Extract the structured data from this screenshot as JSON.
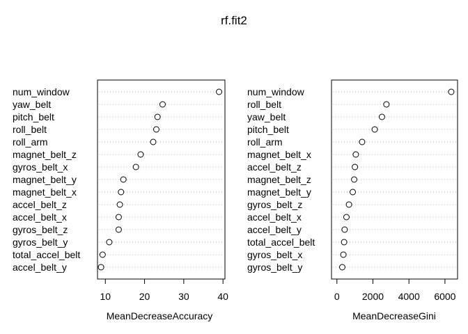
{
  "chart_data": {
    "title": "rf.fit2",
    "panels": [
      {
        "type": "dotchart",
        "xlabel": "MeanDecreaseAccuracy",
        "xlim": [
          8,
          40.5
        ],
        "xticks": [
          10,
          20,
          30,
          40
        ],
        "labels": [
          "num_window",
          "yaw_belt",
          "pitch_belt",
          "roll_belt",
          "roll_arm",
          "magnet_belt_z",
          "gyros_belt_x",
          "magnet_belt_y",
          "magnet_belt_x",
          "accel_belt_z",
          "accel_belt_x",
          "gyros_belt_z",
          "gyros_belt_y",
          "total_accel_belt",
          "accel_belt_y"
        ],
        "values": [
          39.0,
          24.6,
          23.3,
          23.0,
          22.2,
          19.0,
          17.8,
          14.6,
          14.0,
          13.7,
          13.4,
          13.4,
          11.0,
          9.3,
          8.9
        ]
      },
      {
        "type": "dotchart",
        "xlabel": "MeanDecreaseGini",
        "xlim": [
          -300,
          6700
        ],
        "xticks": [
          0,
          2000,
          4000,
          6000
        ],
        "labels": [
          "num_window",
          "roll_belt",
          "yaw_belt",
          "pitch_belt",
          "roll_arm",
          "magnet_belt_x",
          "accel_belt_z",
          "magnet_belt_z",
          "magnet_belt_y",
          "gyros_belt_z",
          "accel_belt_x",
          "accel_belt_y",
          "total_accel_belt",
          "gyros_belt_x",
          "gyros_belt_y"
        ],
        "values": [
          6350,
          2750,
          2500,
          2100,
          1400,
          1050,
          1000,
          960,
          880,
          670,
          530,
          430,
          400,
          360,
          300
        ]
      }
    ]
  }
}
